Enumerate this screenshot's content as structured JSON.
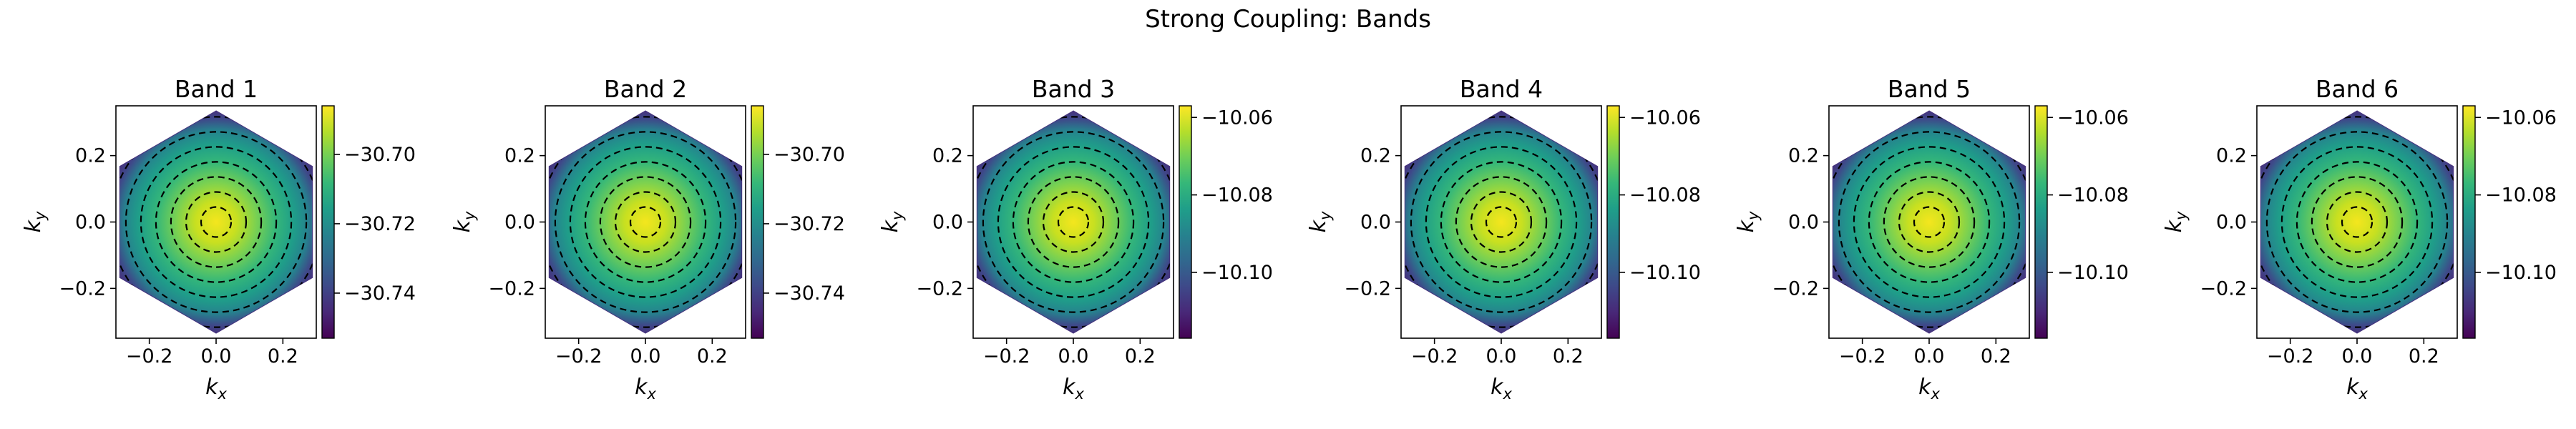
{
  "figure_title": "Strong Coupling: Bands",
  "chart_data": [
    {
      "type": "heatmap",
      "title": "Band 1",
      "xlabel": "k",
      "xlabel_sub": "x",
      "ylabel": "k",
      "ylabel_sub": "y",
      "xlim": [
        -0.3,
        0.3
      ],
      "ylim": [
        -0.35,
        0.35
      ],
      "xticks": [
        -0.2,
        0.0,
        0.2
      ],
      "xtick_labels": [
        "−0.2",
        "0.0",
        "0.2"
      ],
      "yticks": [
        -0.2,
        0.0,
        0.2
      ],
      "ytick_labels": [
        "−0.2",
        "0.0",
        "0.2"
      ],
      "colorbar": {
        "min": -30.753,
        "max": -30.686,
        "ticks": [
          -30.7,
          -30.72,
          -30.74
        ],
        "tick_labels": [
          "−30.70",
          "−30.72",
          "−30.74"
        ]
      },
      "colormap": "viridis",
      "contours": "dashed",
      "region": "hexagon"
    },
    {
      "type": "heatmap",
      "title": "Band 2",
      "xlabel": "k",
      "xlabel_sub": "x",
      "ylabel": "k",
      "ylabel_sub": "y",
      "xlim": [
        -0.3,
        0.3
      ],
      "ylim": [
        -0.35,
        0.35
      ],
      "xticks": [
        -0.2,
        0.0,
        0.2
      ],
      "xtick_labels": [
        "−0.2",
        "0.0",
        "0.2"
      ],
      "yticks": [
        -0.2,
        0.0,
        0.2
      ],
      "ytick_labels": [
        "−0.2",
        "0.0",
        "0.2"
      ],
      "colorbar": {
        "min": -30.753,
        "max": -30.686,
        "ticks": [
          -30.7,
          -30.72,
          -30.74
        ],
        "tick_labels": [
          "−30.70",
          "−30.72",
          "−30.74"
        ]
      },
      "colormap": "viridis",
      "contours": "dashed",
      "region": "hexagon"
    },
    {
      "type": "heatmap",
      "title": "Band 3",
      "xlabel": "k",
      "xlabel_sub": "x",
      "ylabel": "k",
      "ylabel_sub": "y",
      "xlim": [
        -0.3,
        0.3
      ],
      "ylim": [
        -0.35,
        0.35
      ],
      "xticks": [
        -0.2,
        0.0,
        0.2
      ],
      "xtick_labels": [
        "−0.2",
        "0.0",
        "0.2"
      ],
      "yticks": [
        -0.2,
        0.0,
        0.2
      ],
      "ytick_labels": [
        "−0.2",
        "0.0",
        "0.2"
      ],
      "colorbar": {
        "min": -10.117,
        "max": -10.057,
        "ticks": [
          -10.06,
          -10.08,
          -10.1
        ],
        "tick_labels": [
          "−10.06",
          "−10.08",
          "−10.10"
        ]
      },
      "colormap": "viridis",
      "contours": "dashed",
      "region": "hexagon"
    },
    {
      "type": "heatmap",
      "title": "Band 4",
      "xlabel": "k",
      "xlabel_sub": "x",
      "ylabel": "k",
      "ylabel_sub": "y",
      "xlim": [
        -0.3,
        0.3
      ],
      "ylim": [
        -0.35,
        0.35
      ],
      "xticks": [
        -0.2,
        0.0,
        0.2
      ],
      "xtick_labels": [
        "−0.2",
        "0.0",
        "0.2"
      ],
      "yticks": [
        -0.2,
        0.0,
        0.2
      ],
      "ytick_labels": [
        "−0.2",
        "0.0",
        "0.2"
      ],
      "colorbar": {
        "min": -10.117,
        "max": -10.057,
        "ticks": [
          -10.06,
          -10.08,
          -10.1
        ],
        "tick_labels": [
          "−10.06",
          "−10.08",
          "−10.10"
        ]
      },
      "colormap": "viridis",
      "contours": "dashed",
      "region": "hexagon"
    },
    {
      "type": "heatmap",
      "title": "Band 5",
      "xlabel": "k",
      "xlabel_sub": "x",
      "ylabel": "k",
      "ylabel_sub": "y",
      "xlim": [
        -0.3,
        0.3
      ],
      "ylim": [
        -0.35,
        0.35
      ],
      "xticks": [
        -0.2,
        0.0,
        0.2
      ],
      "xtick_labels": [
        "−0.2",
        "0.0",
        "0.2"
      ],
      "yticks": [
        -0.2,
        0.0,
        0.2
      ],
      "ytick_labels": [
        "−0.2",
        "0.0",
        "0.2"
      ],
      "colorbar": {
        "min": -10.117,
        "max": -10.057,
        "ticks": [
          -10.06,
          -10.08,
          -10.1
        ],
        "tick_labels": [
          "−10.06",
          "−10.08",
          "−10.10"
        ]
      },
      "colormap": "viridis",
      "contours": "dashed",
      "region": "hexagon"
    },
    {
      "type": "heatmap",
      "title": "Band 6",
      "xlabel": "k",
      "xlabel_sub": "x",
      "ylabel": "k",
      "ylabel_sub": "y",
      "xlim": [
        -0.3,
        0.3
      ],
      "ylim": [
        -0.35,
        0.35
      ],
      "xticks": [
        -0.2,
        0.0,
        0.2
      ],
      "xtick_labels": [
        "−0.2",
        "0.0",
        "0.2"
      ],
      "yticks": [
        -0.2,
        0.0,
        0.2
      ],
      "ytick_labels": [
        "−0.2",
        "0.0",
        "0.2"
      ],
      "colorbar": {
        "min": -10.117,
        "max": -10.057,
        "ticks": [
          -10.06,
          -10.08,
          -10.1
        ],
        "tick_labels": [
          "−10.06",
          "−10.08",
          "−10.10"
        ]
      },
      "colormap": "viridis",
      "contours": "dashed",
      "region": "hexagon"
    }
  ]
}
